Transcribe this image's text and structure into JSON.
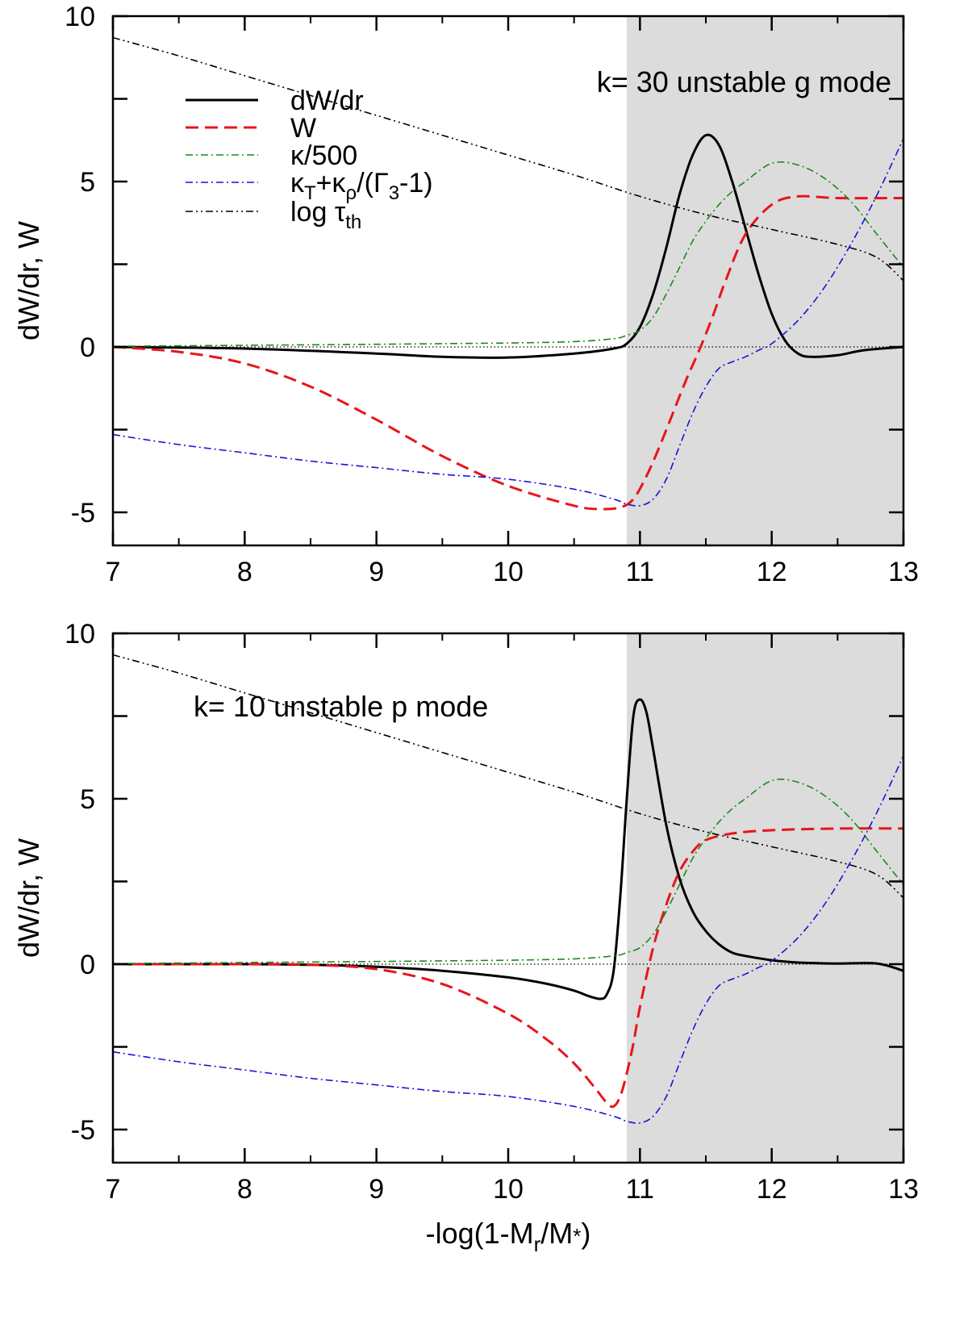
{
  "chart_data": [
    {
      "type": "line",
      "id": "top",
      "title": "",
      "annotation": "k= 30 unstable g mode",
      "xlabel": "",
      "ylabel": "dW/dr, W",
      "xlim": [
        7,
        13
      ],
      "ylim": [
        -6,
        10
      ],
      "xticks": [
        7,
        8,
        9,
        10,
        11,
        12,
        13
      ],
      "xtick_labels": [
        "7",
        "8",
        "9",
        "10",
        "11",
        "12",
        "13"
      ],
      "yticks": [
        -5,
        0,
        5,
        10
      ],
      "ytick_labels": [
        "-5",
        "0",
        "5",
        "10"
      ],
      "shaded_region": [
        10.9,
        13
      ],
      "zero_line": true,
      "legend": {
        "placement": "top-left",
        "entries": [
          {
            "series": "dWdr",
            "label": "dW/dr"
          },
          {
            "series": "W",
            "label": "W"
          },
          {
            "series": "kappa",
            "label": "κ/500"
          },
          {
            "series": "kappaT",
            "label_main": "κ",
            "label_sub1": "T",
            "label_mid": "+κ",
            "label_sub2": "ρ",
            "label_mid2": "/(Γ",
            "label_sub3": "3",
            "label_end": "-1)"
          },
          {
            "series": "logtau",
            "label_main": "log τ",
            "label_sub1": "th"
          }
        ]
      },
      "series": [
        {
          "key": "dWdr",
          "name": "dW/dr",
          "color": "#000000",
          "style": "solid",
          "x": [
            7,
            8,
            9,
            9.5,
            10,
            10.5,
            10.8,
            10.9,
            11.0,
            11.1,
            11.2,
            11.3,
            11.4,
            11.5,
            11.6,
            11.7,
            11.8,
            11.9,
            12.0,
            12.1,
            12.2,
            12.3,
            12.5,
            12.7,
            13
          ],
          "y": [
            0,
            -0.05,
            -0.2,
            -0.3,
            -0.32,
            -0.2,
            -0.05,
            0.1,
            0.6,
            1.6,
            3.0,
            4.6,
            5.8,
            6.4,
            6.1,
            5.0,
            3.6,
            2.2,
            1.0,
            0.2,
            -0.2,
            -0.3,
            -0.25,
            -0.1,
            0
          ]
        },
        {
          "key": "W",
          "name": "W",
          "color": "#e8141b",
          "style": "dashed",
          "x": [
            7,
            7.5,
            8,
            8.5,
            9,
            9.5,
            10,
            10.5,
            10.7,
            10.85,
            10.95,
            11.05,
            11.15,
            11.25,
            11.35,
            11.45,
            11.55,
            11.65,
            11.8,
            12.0,
            12.2,
            12.5,
            13
          ],
          "y": [
            0,
            -0.15,
            -0.5,
            -1.2,
            -2.2,
            -3.3,
            -4.2,
            -4.8,
            -4.9,
            -4.85,
            -4.6,
            -3.9,
            -3.0,
            -2.0,
            -1.0,
            -0.1,
            0.9,
            2.0,
            3.4,
            4.3,
            4.55,
            4.5,
            4.5
          ]
        },
        {
          "key": "kappa",
          "name": "κ/500",
          "color": "#1a8a1a",
          "style": "dashdot",
          "x": [
            7,
            8,
            9,
            10,
            10.5,
            10.8,
            10.9,
            11.0,
            11.1,
            11.2,
            11.3,
            11.4,
            11.5,
            11.6,
            11.7,
            11.8,
            12.0,
            12.2,
            12.4,
            12.6,
            12.8,
            13
          ],
          "y": [
            0.02,
            0.05,
            0.08,
            0.12,
            0.16,
            0.25,
            0.35,
            0.5,
            0.9,
            1.6,
            2.4,
            3.2,
            3.8,
            4.3,
            4.7,
            5.0,
            5.55,
            5.5,
            5.1,
            4.4,
            3.4,
            2.4
          ]
        },
        {
          "key": "kappaT",
          "name": "κT+κρ/(Γ3-1)",
          "color": "#1515d8",
          "style": "dashdot",
          "x": [
            7,
            7.5,
            8,
            8.5,
            9,
            9.5,
            10,
            10.5,
            10.8,
            10.9,
            11.0,
            11.1,
            11.2,
            11.3,
            11.4,
            11.5,
            11.6,
            11.7,
            11.8,
            11.9,
            12.0,
            12.2,
            12.4,
            12.6,
            12.8,
            13
          ],
          "y": [
            -2.65,
            -2.95,
            -3.2,
            -3.45,
            -3.65,
            -3.85,
            -4.0,
            -4.3,
            -4.6,
            -4.75,
            -4.8,
            -4.6,
            -4.0,
            -3.0,
            -2.0,
            -1.2,
            -0.65,
            -0.45,
            -0.3,
            -0.1,
            0.1,
            0.8,
            1.8,
            3.1,
            4.6,
            6.3
          ]
        },
        {
          "key": "logtau",
          "name": "log τth",
          "color": "#000000",
          "style": "dashdotdot",
          "x": [
            7,
            7.5,
            8,
            8.5,
            9,
            9.5,
            10,
            10.5,
            11,
            11.5,
            12,
            12.5,
            12.8,
            13
          ],
          "y": [
            9.35,
            8.8,
            8.2,
            7.6,
            7.0,
            6.4,
            5.8,
            5.2,
            4.55,
            4.0,
            3.55,
            3.1,
            2.7,
            2.0
          ]
        }
      ]
    },
    {
      "type": "line",
      "id": "bottom",
      "title": "",
      "annotation": "k= 10 unstable p mode",
      "xlabel": "-log(1-M",
      "xlabel_sub1": "r",
      "xlabel_mid": "/M",
      "xlabel_sub2": "*",
      "xlabel_end": ")",
      "ylabel": "dW/dr, W",
      "xlim": [
        7,
        13
      ],
      "ylim": [
        -6,
        10
      ],
      "xticks": [
        7,
        8,
        9,
        10,
        11,
        12,
        13
      ],
      "xtick_labels": [
        "7",
        "8",
        "9",
        "10",
        "11",
        "12",
        "13"
      ],
      "yticks": [
        -5,
        0,
        5,
        10
      ],
      "ytick_labels": [
        "-5",
        "0",
        "5",
        "10"
      ],
      "shaded_region": [
        10.9,
        13
      ],
      "zero_line": true,
      "series": [
        {
          "key": "dWdr",
          "name": "dW/dr",
          "color": "#000000",
          "style": "solid",
          "x": [
            7,
            8,
            8.5,
            9,
            9.5,
            10,
            10.3,
            10.5,
            10.6,
            10.7,
            10.75,
            10.8,
            10.85,
            10.9,
            10.95,
            11.0,
            11.05,
            11.1,
            11.2,
            11.3,
            11.4,
            11.5,
            11.6,
            11.7,
            11.8,
            12.0,
            12.2,
            12.5,
            12.8,
            13
          ],
          "y": [
            0,
            0,
            -0.02,
            -0.08,
            -0.2,
            -0.4,
            -0.6,
            -0.8,
            -0.95,
            -1.05,
            -0.9,
            -0.2,
            2.0,
            5.0,
            7.5,
            8.0,
            7.6,
            6.5,
            4.2,
            2.6,
            1.6,
            1.0,
            0.6,
            0.35,
            0.25,
            0.12,
            0.05,
            0.02,
            0.02,
            -0.2
          ]
        },
        {
          "key": "W",
          "name": "W",
          "color": "#e8141b",
          "style": "dashed",
          "x": [
            7,
            8,
            8.5,
            9,
            9.5,
            10,
            10.3,
            10.5,
            10.65,
            10.75,
            10.8,
            10.85,
            10.9,
            10.95,
            11.0,
            11.1,
            11.2,
            11.3,
            11.4,
            11.5,
            11.7,
            12.0,
            12.5,
            13
          ],
          "y": [
            0,
            0,
            -0.02,
            -0.15,
            -0.6,
            -1.5,
            -2.3,
            -3.0,
            -3.7,
            -4.2,
            -4.3,
            -4.0,
            -3.3,
            -2.4,
            -1.3,
            0.5,
            1.8,
            2.8,
            3.4,
            3.75,
            3.95,
            4.05,
            4.1,
            4.1
          ]
        },
        {
          "key": "kappa",
          "name": "κ/500",
          "color": "#1a8a1a",
          "style": "dashdot",
          "x": [
            7,
            8,
            9,
            10,
            10.5,
            10.8,
            10.9,
            11.0,
            11.1,
            11.2,
            11.3,
            11.4,
            11.5,
            11.6,
            11.7,
            11.8,
            12.0,
            12.2,
            12.4,
            12.6,
            12.8,
            13
          ],
          "y": [
            0.02,
            0.05,
            0.08,
            0.12,
            0.16,
            0.25,
            0.35,
            0.5,
            0.9,
            1.6,
            2.4,
            3.2,
            3.8,
            4.3,
            4.7,
            5.0,
            5.55,
            5.5,
            5.1,
            4.4,
            3.4,
            2.4
          ]
        },
        {
          "key": "kappaT",
          "name": "κT+κρ/(Γ3-1)",
          "color": "#1515d8",
          "style": "dashdot",
          "x": [
            7,
            7.5,
            8,
            8.5,
            9,
            9.5,
            10,
            10.5,
            10.8,
            10.9,
            11.0,
            11.1,
            11.2,
            11.3,
            11.4,
            11.5,
            11.6,
            11.7,
            11.8,
            11.9,
            12.0,
            12.2,
            12.4,
            12.6,
            12.8,
            13
          ],
          "y": [
            -2.65,
            -2.95,
            -3.2,
            -3.45,
            -3.65,
            -3.85,
            -4.0,
            -4.3,
            -4.6,
            -4.75,
            -4.8,
            -4.6,
            -4.0,
            -3.0,
            -2.0,
            -1.2,
            -0.65,
            -0.45,
            -0.3,
            -0.1,
            0.1,
            0.8,
            1.8,
            3.1,
            4.6,
            6.3
          ]
        },
        {
          "key": "logtau",
          "name": "log τth",
          "color": "#000000",
          "style": "dashdotdot",
          "x": [
            7,
            7.5,
            8,
            8.5,
            9,
            9.5,
            10,
            10.5,
            11,
            11.5,
            12,
            12.5,
            12.8,
            13
          ],
          "y": [
            9.35,
            8.8,
            8.2,
            7.6,
            7.0,
            6.4,
            5.8,
            5.2,
            4.55,
            4.0,
            3.55,
            3.1,
            2.7,
            2.0
          ]
        }
      ]
    }
  ]
}
